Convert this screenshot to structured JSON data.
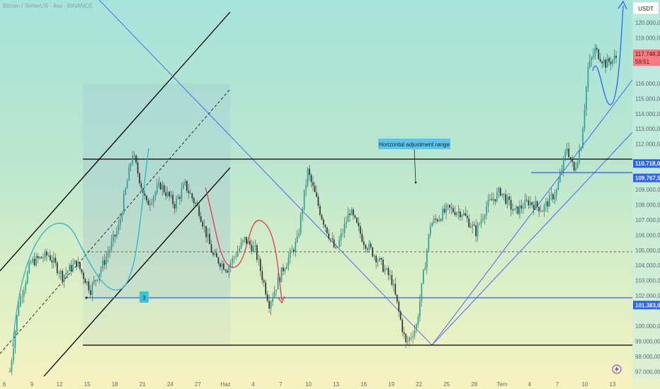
{
  "symbol_title": "Bitcoin / TetherUS · 4sa · BINANCE",
  "currency_button": "USDT",
  "colors": {
    "up": "#26a69a",
    "down": "#333333",
    "wick": "#444444",
    "channel": "#000000",
    "trend": "#3d5afe",
    "level": "#2962ff",
    "curve_up": "#26b8c8",
    "curve_down": "#e53950",
    "price_tag": "#f77c80",
    "level_tag": "#2962ff",
    "annotation_bg": "#5fc4e8"
  },
  "chart_data": {
    "type": "candlestick",
    "title": "",
    "ylim": [
      96500,
      121500
    ],
    "y_ticks": [
      {
        "value": 97000,
        "label": "97.000,00"
      },
      {
        "value": 98000,
        "label": "98.000,00"
      },
      {
        "value": 99000,
        "label": "99.000,00"
      },
      {
        "value": 100000,
        "label": "100.000,00"
      },
      {
        "value": 102000,
        "label": "102.000,00"
      },
      {
        "value": 103000,
        "label": "103.000,00"
      },
      {
        "value": 104000,
        "label": "104.000,00"
      },
      {
        "value": 105000,
        "label": "105.000,00"
      },
      {
        "value": 106000,
        "label": "106.000,00"
      },
      {
        "value": 107000,
        "label": "107.000,00"
      },
      {
        "value": 108000,
        "label": "108.000,00"
      },
      {
        "value": 109000,
        "label": "109.000,00"
      },
      {
        "value": 112000,
        "label": "112.000,00"
      },
      {
        "value": 113000,
        "label": "113.000,00"
      },
      {
        "value": 114000,
        "label": "114.000,00"
      },
      {
        "value": 115000,
        "label": "115.000,00"
      },
      {
        "value": 116000,
        "label": "116.000,00"
      },
      {
        "value": 119000,
        "label": "119.000,00"
      },
      {
        "value": 120000,
        "label": "120.000,00"
      }
    ],
    "x_ticks": [
      "6",
      "9",
      "12",
      "15",
      "18",
      "21",
      "24",
      "27",
      "Haz",
      "4",
      "7",
      "10",
      "13",
      "16",
      "19",
      "22",
      "25",
      "28",
      "Tem",
      "4",
      "7",
      "10",
      "13"
    ],
    "current_price": {
      "value": 117748.38,
      "label": "117.748,38",
      "countdown": "59:51"
    },
    "levels": [
      {
        "value": 110718,
        "label": "110.718,00"
      },
      {
        "value": 109767.59,
        "label": "109.767,59"
      },
      {
        "value": 101383.07,
        "label": "101.383,07"
      }
    ],
    "annotation": "Horizontal adjustment range",
    "marker_label": "3",
    "keypoints": [
      [
        0,
        97000
      ],
      [
        5,
        101500
      ],
      [
        12,
        104200
      ],
      [
        22,
        104700
      ],
      [
        30,
        103300
      ],
      [
        38,
        104200
      ],
      [
        46,
        102400
      ],
      [
        54,
        104300
      ],
      [
        62,
        106500
      ],
      [
        70,
        111400
      ],
      [
        78,
        108000
      ],
      [
        86,
        109300
      ],
      [
        94,
        108000
      ],
      [
        100,
        109300
      ],
      [
        108,
        107600
      ],
      [
        116,
        104600
      ],
      [
        124,
        103800
      ],
      [
        134,
        105700
      ],
      [
        140,
        105000
      ],
      [
        148,
        101500
      ],
      [
        156,
        103800
      ],
      [
        164,
        105600
      ],
      [
        170,
        110200
      ],
      [
        178,
        107200
      ],
      [
        186,
        104900
      ],
      [
        194,
        107600
      ],
      [
        202,
        105600
      ],
      [
        210,
        104400
      ],
      [
        218,
        103000
      ],
      [
        226,
        98800
      ],
      [
        232,
        100000
      ],
      [
        240,
        106700
      ],
      [
        250,
        107700
      ],
      [
        258,
        107500
      ],
      [
        266,
        106200
      ],
      [
        272,
        107900
      ],
      [
        280,
        108900
      ],
      [
        288,
        107500
      ],
      [
        296,
        108200
      ],
      [
        304,
        107700
      ],
      [
        312,
        108900
      ],
      [
        318,
        111800
      ],
      [
        322,
        110200
      ],
      [
        326,
        112000
      ],
      [
        330,
        117000
      ],
      [
        334,
        118200
      ],
      [
        340,
        117300
      ],
      [
        346,
        117700
      ]
    ]
  }
}
